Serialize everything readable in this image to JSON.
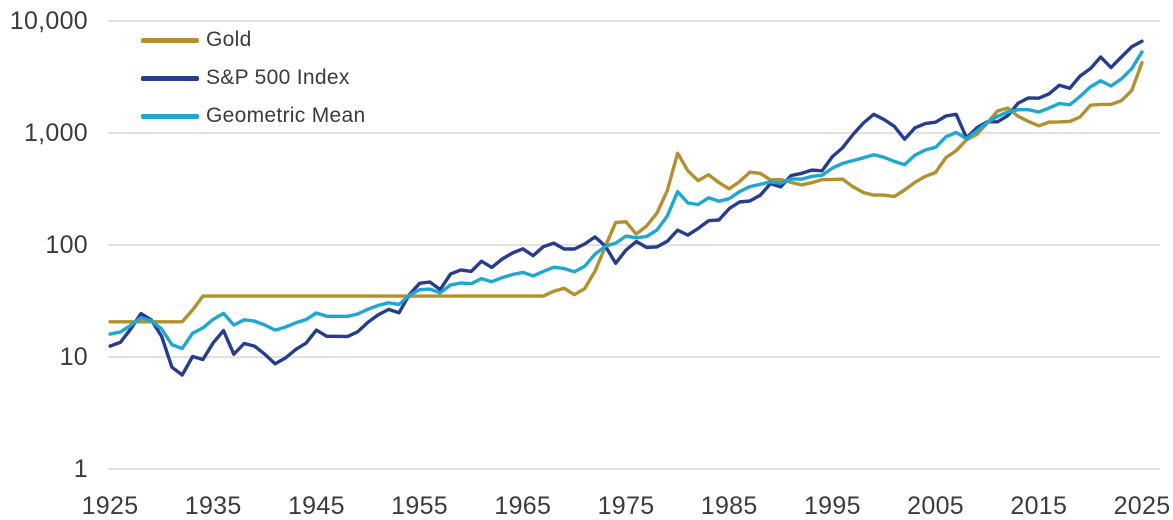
{
  "colors": {
    "background": "#ffffff",
    "gridline": "#d9d9d9",
    "axis_text": "#3b3b3b",
    "gold": "#b1902d",
    "sp500": "#253c8f",
    "geometric_mean": "#1ea7d2"
  },
  "chart_data": {
    "type": "line",
    "y_scale": "log",
    "ylim": [
      1,
      10000
    ],
    "x_range": [
      1925,
      2025
    ],
    "grid": "horizontal",
    "legend_position": "top-left",
    "yticks": [
      {
        "value": 10000,
        "label": "10,000"
      },
      {
        "value": 1000,
        "label": "1,000"
      },
      {
        "value": 100,
        "label": "100"
      },
      {
        "value": 10,
        "label": "10"
      },
      {
        "value": 1,
        "label": "1"
      }
    ],
    "xticks": [
      {
        "value": 1925,
        "label": "1925"
      },
      {
        "value": 1935,
        "label": "1935"
      },
      {
        "value": 1945,
        "label": "1945"
      },
      {
        "value": 1955,
        "label": "1955"
      },
      {
        "value": 1965,
        "label": "1965"
      },
      {
        "value": 1975,
        "label": "1975"
      },
      {
        "value": 1985,
        "label": "1985"
      },
      {
        "value": 1995,
        "label": "1995"
      },
      {
        "value": 2005,
        "label": "2005"
      },
      {
        "value": 2015,
        "label": "2015"
      },
      {
        "value": 2025,
        "label": "2025"
      }
    ],
    "x": [
      1925,
      1926,
      1927,
      1928,
      1929,
      1930,
      1931,
      1932,
      1933,
      1934,
      1935,
      1936,
      1937,
      1938,
      1939,
      1940,
      1941,
      1942,
      1943,
      1944,
      1945,
      1946,
      1947,
      1948,
      1949,
      1950,
      1951,
      1952,
      1953,
      1954,
      1955,
      1956,
      1957,
      1958,
      1959,
      1960,
      1961,
      1962,
      1963,
      1964,
      1965,
      1966,
      1967,
      1968,
      1969,
      1970,
      1971,
      1972,
      1973,
      1974,
      1975,
      1976,
      1977,
      1978,
      1979,
      1980,
      1981,
      1982,
      1983,
      1984,
      1985,
      1986,
      1987,
      1988,
      1989,
      1990,
      1991,
      1992,
      1993,
      1994,
      1995,
      1996,
      1997,
      1998,
      1999,
      2000,
      2001,
      2002,
      2003,
      2004,
      2005,
      2006,
      2007,
      2008,
      2009,
      2010,
      2011,
      2012,
      2013,
      2014,
      2015,
      2016,
      2017,
      2018,
      2019,
      2020,
      2021,
      2022,
      2023,
      2024,
      2025
    ],
    "series": [
      {
        "name": "Gold",
        "color": "#b1902d",
        "values": [
          20.6,
          20.6,
          20.6,
          20.6,
          20.6,
          20.6,
          20.6,
          20.6,
          26.3,
          35,
          35,
          35,
          35,
          35,
          35,
          35,
          35,
          35,
          35,
          35,
          35,
          35,
          35,
          35,
          35,
          35,
          35,
          35,
          35,
          35,
          35,
          35,
          35,
          35,
          35,
          35,
          35,
          35,
          35,
          35,
          35,
          35,
          35,
          38.7,
          41.1,
          36,
          40.8,
          58.2,
          97.3,
          159,
          161,
          125,
          148,
          193,
          306,
          660,
          460,
          376,
          424,
          361,
          317,
          368,
          447,
          437,
          381,
          384,
          362,
          344,
          360,
          384,
          384,
          388,
          331,
          294,
          279,
          279,
          271,
          310,
          363,
          410,
          445,
          603,
          695,
          872,
          972,
          1225,
          1572,
          1669,
          1411,
          1266,
          1160,
          1251,
          1257,
          1269,
          1393,
          1770,
          1799,
          1800,
          1941,
          2389,
          4250
        ]
      },
      {
        "name": "S&P 500 Index",
        "color": "#253c8f",
        "values": [
          12.5,
          13.5,
          17.7,
          24.4,
          21.4,
          15.3,
          8.1,
          6.9,
          10.1,
          9.5,
          13.4,
          17.2,
          10.6,
          13.2,
          12.5,
          10.6,
          8.7,
          9.8,
          11.7,
          13.3,
          17.4,
          15.3,
          15.3,
          15.2,
          16.8,
          20.4,
          23.8,
          26.6,
          24.8,
          36,
          45.5,
          46.7,
          40,
          55.2,
          59.9,
          58.1,
          71.6,
          63.1,
          75,
          84.8,
          92.4,
          80.3,
          96.5,
          103.9,
          92.1,
          92.2,
          102.1,
          118.1,
          97.6,
          68.6,
          90.2,
          107.5,
          95.1,
          96.1,
          107.9,
          135.8,
          122.6,
          140.6,
          164.9,
          167.2,
          211.3,
          242.2,
          247.1,
          277.7,
          353.4,
          330.2,
          417.1,
          435.7,
          466.5,
          459.3,
          615.9,
          740.7,
          970.4,
          1229,
          1469,
          1320,
          1148,
          880,
          1112,
          1212,
          1248,
          1418,
          1468,
          903,
          1115,
          1258,
          1258,
          1426,
          1848,
          2059,
          2044,
          2239,
          2674,
          2507,
          3231,
          3756,
          4766,
          3840,
          4770,
          5882,
          6600
        ]
      },
      {
        "name": "Geometric Mean",
        "color": "#1ea7d2",
        "values": [
          16,
          16.7,
          19.1,
          22.4,
          21,
          17.8,
          12.9,
          11.9,
          16.3,
          18.2,
          21.7,
          24.5,
          19.3,
          21.5,
          20.9,
          19.3,
          17.4,
          18.5,
          20.2,
          21.6,
          24.7,
          23.1,
          23.1,
          23.1,
          24.2,
          26.7,
          28.9,
          30.5,
          29.5,
          35.5,
          39.9,
          40.4,
          37.4,
          44,
          45.8,
          45.1,
          50.1,
          47,
          51.2,
          54.5,
          56.9,
          53,
          58.1,
          63.4,
          61.5,
          57.6,
          64.5,
          82.9,
          97.4,
          104,
          120,
          116,
          119,
          136,
          182,
          299,
          237,
          230,
          264,
          246,
          259,
          299,
          332,
          348,
          367,
          356,
          389,
          387,
          410,
          420,
          486,
          536,
          567,
          601,
          640,
          607,
          558,
          522,
          635,
          705,
          745,
          925,
          1010,
          888,
          1041,
          1241,
          1406,
          1543,
          1615,
          1614,
          1540,
          1674,
          1833,
          1784,
          2121,
          2578,
          2928,
          2629,
          3043,
          3749,
          5297
        ]
      }
    ]
  }
}
